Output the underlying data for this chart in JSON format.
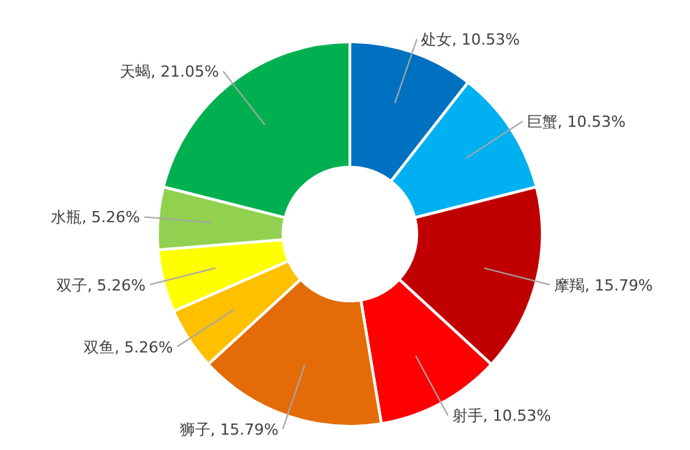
{
  "chart_data": {
    "type": "donut",
    "categories": [
      "处女",
      "巨蟹",
      "摩羯",
      "射手",
      "狮子",
      "双鱼",
      "双子",
      "水瓶",
      "天蝎"
    ],
    "values": [
      10.53,
      10.53,
      15.79,
      10.53,
      15.79,
      5.26,
      5.26,
      5.26,
      21.05
    ],
    "value_labels": [
      "10.53%",
      "10.53%",
      "15.79%",
      "10.53%",
      "15.79%",
      "5.26%",
      "5.26%",
      "5.26%",
      "21.05%"
    ],
    "colors": [
      "#0070c0",
      "#00b0f0",
      "#c00000",
      "#ff0000",
      "#e36c09",
      "#ffc000",
      "#ffff00",
      "#92d050",
      "#00b050"
    ]
  }
}
